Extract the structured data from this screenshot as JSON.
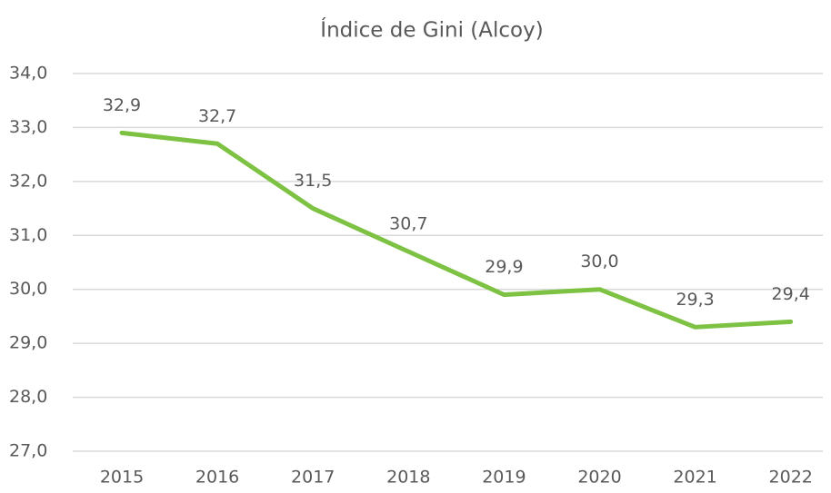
{
  "chart_data": {
    "type": "line",
    "title": "Índice de Gini (Alcoy)",
    "categories": [
      "2015",
      "2016",
      "2017",
      "2018",
      "2019",
      "2020",
      "2021",
      "2022"
    ],
    "series": [
      {
        "name": "Índice de Gini",
        "color": "#7dc243",
        "values": [
          32.9,
          32.7,
          31.5,
          30.7,
          29.9,
          30.0,
          29.3,
          29.4
        ],
        "value_labels": [
          "32,9",
          "32,7",
          "31,5",
          "30,7",
          "29,9",
          "30,0",
          "29,3",
          "29,4"
        ]
      }
    ],
    "ylim": [
      27,
      34
    ],
    "yticks": [
      {
        "value": 27,
        "label": "27,0"
      },
      {
        "value": 28,
        "label": "28,0"
      },
      {
        "value": 29,
        "label": "29,0"
      },
      {
        "value": 30,
        "label": "30,0"
      },
      {
        "value": 31,
        "label": "31,0"
      },
      {
        "value": 32,
        "label": "32,0"
      },
      {
        "value": 33,
        "label": "33,0"
      },
      {
        "value": 34,
        "label": "34,0"
      }
    ],
    "grid": true
  }
}
